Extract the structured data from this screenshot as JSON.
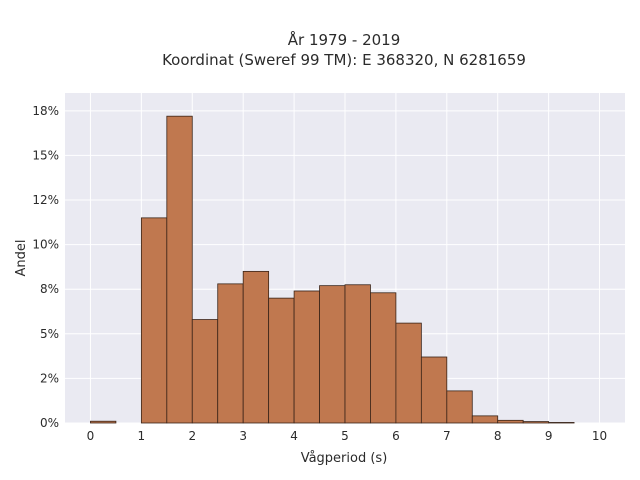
{
  "chart_data": {
    "type": "bar",
    "title_line1": "År 1979 - 2019",
    "title_line2": "Koordinat (Sweref 99 TM): E 368320, N 6281659",
    "xlabel": "Vågperiod (s)",
    "ylabel": "Andel",
    "xlim": [
      -0.5,
      10.5
    ],
    "ylim": [
      0,
      18.5
    ],
    "x_ticks": [
      0,
      1,
      2,
      3,
      4,
      5,
      6,
      7,
      8,
      9,
      10
    ],
    "y_ticks": [
      {
        "value": 0,
        "label": "0%"
      },
      {
        "value": 2.5,
        "label": "2%"
      },
      {
        "value": 5,
        "label": "5%"
      },
      {
        "value": 7.5,
        "label": "8%"
      },
      {
        "value": 10,
        "label": "10%"
      },
      {
        "value": 12.5,
        "label": "12%"
      },
      {
        "value": 15,
        "label": "15%"
      },
      {
        "value": 17.5,
        "label": "18%"
      }
    ],
    "grid": true,
    "bar_color": "#c0784f",
    "bar_edge_color": "#3a2418",
    "plot_background": "#eaeaf2",
    "bins": [
      {
        "start": 0.0,
        "end": 0.5,
        "value": 0.1
      },
      {
        "start": 0.5,
        "end": 1.0,
        "value": 0.0
      },
      {
        "start": 1.0,
        "end": 1.5,
        "value": 11.5
      },
      {
        "start": 1.5,
        "end": 2.0,
        "value": 17.2
      },
      {
        "start": 2.0,
        "end": 2.5,
        "value": 5.8
      },
      {
        "start": 2.5,
        "end": 3.0,
        "value": 7.8
      },
      {
        "start": 3.0,
        "end": 3.5,
        "value": 8.5
      },
      {
        "start": 3.5,
        "end": 4.0,
        "value": 7.0
      },
      {
        "start": 4.0,
        "end": 4.5,
        "value": 7.4
      },
      {
        "start": 4.5,
        "end": 5.0,
        "value": 7.7
      },
      {
        "start": 5.0,
        "end": 5.5,
        "value": 7.75
      },
      {
        "start": 5.5,
        "end": 6.0,
        "value": 7.3
      },
      {
        "start": 6.0,
        "end": 6.5,
        "value": 5.6
      },
      {
        "start": 6.5,
        "end": 7.0,
        "value": 3.7
      },
      {
        "start": 7.0,
        "end": 7.5,
        "value": 1.8
      },
      {
        "start": 7.5,
        "end": 8.0,
        "value": 0.4
      },
      {
        "start": 8.0,
        "end": 8.5,
        "value": 0.15
      },
      {
        "start": 8.5,
        "end": 9.0,
        "value": 0.08
      },
      {
        "start": 9.0,
        "end": 9.5,
        "value": 0.03
      }
    ]
  }
}
